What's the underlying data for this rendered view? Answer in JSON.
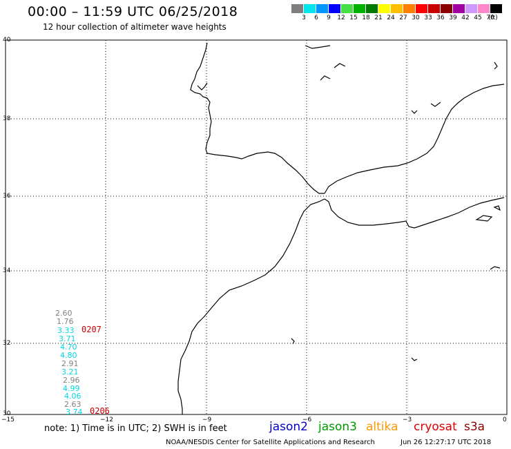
{
  "header": {
    "title": "00:00 – 11:59 UTC 06/25/2018",
    "subtitle": "12 hour collection of altimeter wave heights"
  },
  "colorbar": {
    "unit_label": "(ft)",
    "bins": [
      {
        "label": "3",
        "color": "#7f7f7f"
      },
      {
        "label": "6",
        "color": "#00e5ee"
      },
      {
        "label": "9",
        "color": "#0096ff"
      },
      {
        "label": "12",
        "color": "#0000ff"
      },
      {
        "label": "15",
        "color": "#44e044"
      },
      {
        "label": "18",
        "color": "#00b000"
      },
      {
        "label": "21",
        "color": "#007a00"
      },
      {
        "label": "24",
        "color": "#ffff00"
      },
      {
        "label": "27",
        "color": "#ffbf00"
      },
      {
        "label": "30",
        "color": "#ff7f00"
      },
      {
        "label": "33",
        "color": "#ff0000"
      },
      {
        "label": "36",
        "color": "#c80000"
      },
      {
        "label": "39",
        "color": "#8b0000"
      },
      {
        "label": "42",
        "color": "#a000a0"
      },
      {
        "label": "45",
        "color": "#cc99ff"
      },
      {
        "label": "70",
        "color": "#ff88cc"
      },
      {
        "label": "",
        "color": "#000000"
      }
    ]
  },
  "map": {
    "lat_labels": [
      "40",
      "38",
      "36",
      "34",
      "32",
      "30"
    ],
    "lon_labels": [
      "−15",
      "−12",
      "−9",
      "−6",
      "−3",
      "0"
    ],
    "swh_observations": [
      {
        "text": "2.60",
        "color": "#7f7f7f"
      },
      {
        "text": "1.76",
        "color": "#7f7f7f"
      },
      {
        "text": "3.33",
        "color": "#00d8e0"
      },
      {
        "text": "3.71",
        "color": "#00d8e0"
      },
      {
        "text": "4.70",
        "color": "#00d8e0"
      },
      {
        "text": "4.80",
        "color": "#00d8e0"
      },
      {
        "text": "2.91",
        "color": "#7f7f7f"
      },
      {
        "text": "3.21",
        "color": "#00d8e0"
      },
      {
        "text": "2.96",
        "color": "#7f7f7f"
      },
      {
        "text": "4.99",
        "color": "#00d8e0"
      },
      {
        "text": "4.06",
        "color": "#00d8e0"
      },
      {
        "text": "2.63",
        "color": "#7f7f7f"
      },
      {
        "text": "3.74",
        "color": "#00d8e0"
      }
    ],
    "pass_times": [
      "0207",
      "0206"
    ]
  },
  "footer": {
    "note": "note:  1) Time is in UTC;  2) SWH is in feet",
    "satellites": [
      {
        "name": "jason2",
        "color": "#0000cc"
      },
      {
        "name": "jason3",
        "color": "#009900"
      },
      {
        "name": "altika",
        "color": "#ff9900"
      },
      {
        "name": "cryosat",
        "color": "#dd0000"
      },
      {
        "name": "s3a",
        "color": "#880000"
      }
    ],
    "credit": "NOAA/NESDIS Center for Satellite Applications and Research",
    "timestamp": "Jun 26 12:27:17 UTC 2018"
  }
}
